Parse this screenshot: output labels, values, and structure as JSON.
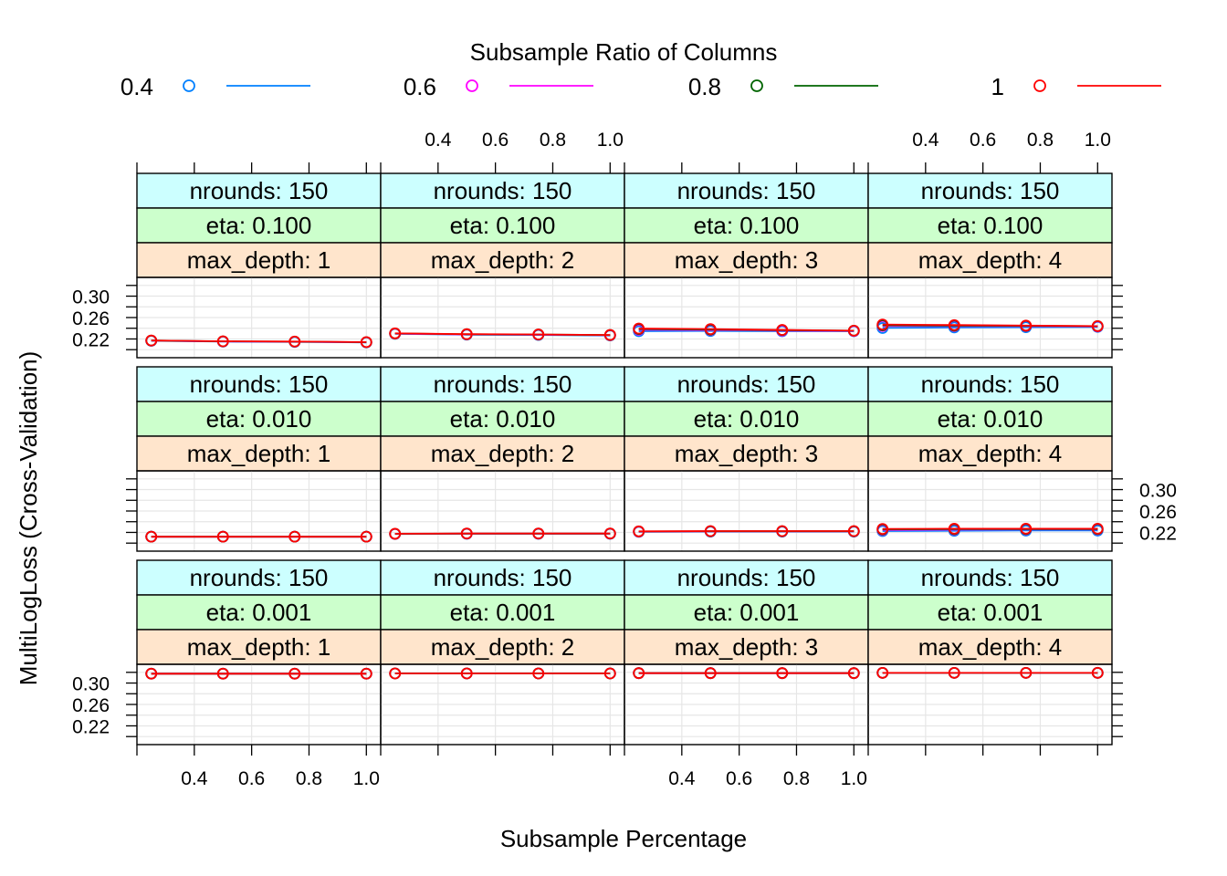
{
  "chart_data": {
    "type": "line",
    "legend": {
      "title": "Subsample Ratio of Columns",
      "placement": "top",
      "entries": [
        {
          "label": "0.4",
          "color": "#0080ff"
        },
        {
          "label": "0.6",
          "color": "#ff00ff"
        },
        {
          "label": "0.8",
          "color": "#006400"
        },
        {
          "label": "1",
          "color": "#ff0000"
        }
      ]
    },
    "xlabel": "Subsample Percentage",
    "ylabel": "MultiLogLoss (Cross-Validation)",
    "xlim": [
      0.2,
      1.05
    ],
    "ylim": [
      0.185,
      0.335
    ],
    "xticks": [
      "0.4",
      "0.6",
      "0.8",
      "1.0"
    ],
    "yticks": [
      "0.22",
      "0.26",
      "0.30"
    ],
    "x": [
      0.25,
      0.5,
      0.75,
      1.0
    ],
    "grid": true,
    "panels": [
      {
        "nrounds": "nrounds: 150",
        "eta": "eta: 0.100",
        "max_depth": "max_depth: 1",
        "row": 0,
        "col": 0,
        "series": [
          {
            "name": "0.4",
            "values": [
              0.2165,
              0.215,
              0.2145,
              0.2135
            ]
          },
          {
            "name": "0.6",
            "values": [
              0.2168,
              0.2153,
              0.2148,
              0.2138
            ]
          },
          {
            "name": "0.8",
            "values": [
              0.217,
              0.2155,
              0.215,
              0.214
            ]
          },
          {
            "name": "1",
            "values": [
              0.2172,
              0.2157,
              0.2152,
              0.2142
            ]
          }
        ]
      },
      {
        "nrounds": "nrounds: 150",
        "eta": "eta: 0.100",
        "max_depth": "max_depth: 2",
        "row": 0,
        "col": 1,
        "series": [
          {
            "name": "0.4",
            "values": [
              0.2295,
              0.228,
              0.2275,
              0.2265
            ]
          },
          {
            "name": "0.6",
            "values": [
              0.23,
              0.2285,
              0.228,
              0.227
            ]
          },
          {
            "name": "0.8",
            "values": [
              0.2303,
              0.2288,
              0.2283,
              0.2273
            ]
          },
          {
            "name": "1",
            "values": [
              0.2305,
              0.229,
              0.2285,
              0.2275
            ]
          }
        ]
      },
      {
        "nrounds": "nrounds: 150",
        "eta": "eta: 0.100",
        "max_depth": "max_depth: 3",
        "row": 0,
        "col": 2,
        "series": [
          {
            "name": "0.4",
            "values": [
              0.2345,
              0.235,
              0.2345,
              0.2345
            ]
          },
          {
            "name": "0.6",
            "values": [
              0.237,
              0.2365,
              0.2355,
              0.235
            ]
          },
          {
            "name": "0.8",
            "values": [
              0.2385,
              0.2375,
              0.2365,
              0.2355
            ]
          },
          {
            "name": "1",
            "values": [
              0.2395,
              0.2385,
              0.237,
              0.2355
            ]
          }
        ]
      },
      {
        "nrounds": "nrounds: 150",
        "eta": "eta: 0.100",
        "max_depth": "max_depth: 4",
        "row": 0,
        "col": 3,
        "series": [
          {
            "name": "0.4",
            "values": [
              0.2405,
              0.2415,
              0.242,
              0.2425
            ]
          },
          {
            "name": "0.6",
            "values": [
              0.244,
              0.244,
              0.244,
              0.2435
            ]
          },
          {
            "name": "0.8",
            "values": [
              0.2455,
              0.245,
              0.2445,
              0.244
            ]
          },
          {
            "name": "1",
            "values": [
              0.247,
              0.246,
              0.245,
              0.244
            ]
          }
        ]
      },
      {
        "nrounds": "nrounds: 150",
        "eta": "eta: 0.010",
        "max_depth": "max_depth: 1",
        "row": 1,
        "col": 0,
        "series": [
          {
            "name": "0.4",
            "values": [
              0.212,
              0.212,
              0.212,
              0.212
            ]
          },
          {
            "name": "0.6",
            "values": [
              0.212,
              0.212,
              0.212,
              0.212
            ]
          },
          {
            "name": "0.8",
            "values": [
              0.212,
              0.212,
              0.212,
              0.212
            ]
          },
          {
            "name": "1",
            "values": [
              0.212,
              0.212,
              0.212,
              0.212
            ]
          }
        ]
      },
      {
        "nrounds": "nrounds: 150",
        "eta": "eta: 0.010",
        "max_depth": "max_depth: 2",
        "row": 1,
        "col": 1,
        "series": [
          {
            "name": "0.4",
            "values": [
              0.217,
              0.2175,
              0.2175,
              0.2175
            ]
          },
          {
            "name": "0.6",
            "values": [
              0.2172,
              0.2177,
              0.2177,
              0.2177
            ]
          },
          {
            "name": "0.8",
            "values": [
              0.2174,
              0.2178,
              0.2178,
              0.2178
            ]
          },
          {
            "name": "1",
            "values": [
              0.2175,
              0.218,
              0.218,
              0.218
            ]
          }
        ]
      },
      {
        "nrounds": "nrounds: 150",
        "eta": "eta: 0.010",
        "max_depth": "max_depth: 3",
        "row": 1,
        "col": 2,
        "series": [
          {
            "name": "0.4",
            "values": [
              0.221,
              0.2215,
              0.2215,
              0.2215
            ]
          },
          {
            "name": "0.6",
            "values": [
              0.2215,
              0.222,
              0.222,
              0.222
            ]
          },
          {
            "name": "0.8",
            "values": [
              0.2218,
              0.2222,
              0.2222,
              0.2222
            ]
          },
          {
            "name": "1",
            "values": [
              0.222,
              0.2225,
              0.2225,
              0.2225
            ]
          }
        ]
      },
      {
        "nrounds": "nrounds: 150",
        "eta": "eta: 0.010",
        "max_depth": "max_depth: 4",
        "row": 1,
        "col": 3,
        "series": [
          {
            "name": "0.4",
            "values": [
              0.2225,
              0.223,
              0.2235,
              0.2235
            ]
          },
          {
            "name": "0.6",
            "values": [
              0.2245,
              0.225,
              0.2255,
              0.2255
            ]
          },
          {
            "name": "0.8",
            "values": [
              0.2255,
              0.226,
              0.2262,
              0.2262
            ]
          },
          {
            "name": "1",
            "values": [
              0.2265,
              0.227,
              0.227,
              0.227
            ]
          }
        ]
      },
      {
        "nrounds": "nrounds: 150",
        "eta": "eta: 0.001",
        "max_depth": "max_depth: 1",
        "row": 2,
        "col": 0,
        "series": [
          {
            "name": "0.4",
            "values": [
              0.3175,
              0.3175,
              0.3175,
              0.3175
            ]
          },
          {
            "name": "0.6",
            "values": [
              0.3175,
              0.3175,
              0.3175,
              0.3175
            ]
          },
          {
            "name": "0.8",
            "values": [
              0.3175,
              0.3175,
              0.3175,
              0.3175
            ]
          },
          {
            "name": "1",
            "values": [
              0.3175,
              0.3175,
              0.3175,
              0.3175
            ]
          }
        ]
      },
      {
        "nrounds": "nrounds: 150",
        "eta": "eta: 0.001",
        "max_depth": "max_depth: 2",
        "row": 2,
        "col": 1,
        "series": [
          {
            "name": "0.4",
            "values": [
              0.318,
              0.318,
              0.318,
              0.318
            ]
          },
          {
            "name": "0.6",
            "values": [
              0.318,
              0.318,
              0.318,
              0.318
            ]
          },
          {
            "name": "0.8",
            "values": [
              0.318,
              0.318,
              0.318,
              0.318
            ]
          },
          {
            "name": "1",
            "values": [
              0.318,
              0.318,
              0.318,
              0.318
            ]
          }
        ]
      },
      {
        "nrounds": "nrounds: 150",
        "eta": "eta: 0.001",
        "max_depth": "max_depth: 3",
        "row": 2,
        "col": 2,
        "series": [
          {
            "name": "0.4",
            "values": [
              0.3185,
              0.3185,
              0.3185,
              0.3185
            ]
          },
          {
            "name": "0.6",
            "values": [
              0.3185,
              0.3185,
              0.3185,
              0.3185
            ]
          },
          {
            "name": "0.8",
            "values": [
              0.3185,
              0.3185,
              0.3185,
              0.3185
            ]
          },
          {
            "name": "1",
            "values": [
              0.3185,
              0.3185,
              0.3185,
              0.3185
            ]
          }
        ]
      },
      {
        "nrounds": "nrounds: 150",
        "eta": "eta: 0.001",
        "max_depth": "max_depth: 4",
        "row": 2,
        "col": 3,
        "series": [
          {
            "name": "0.4",
            "values": [
              0.319,
              0.319,
              0.319,
              0.319
            ]
          },
          {
            "name": "0.6",
            "values": [
              0.319,
              0.319,
              0.319,
              0.319
            ]
          },
          {
            "name": "0.8",
            "values": [
              0.319,
              0.319,
              0.319,
              0.319
            ]
          },
          {
            "name": "1",
            "values": [
              0.319,
              0.319,
              0.319,
              0.319
            ]
          }
        ]
      }
    ],
    "strip_colors": {
      "nrounds": "#ccffff",
      "eta": "#ccffcc",
      "max_depth": "#ffe5cc"
    }
  }
}
